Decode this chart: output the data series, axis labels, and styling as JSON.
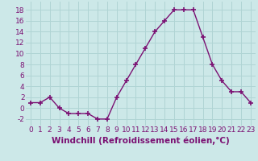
{
  "x": [
    0,
    1,
    2,
    3,
    4,
    5,
    6,
    7,
    8,
    9,
    10,
    11,
    12,
    13,
    14,
    15,
    16,
    17,
    18,
    19,
    20,
    21,
    22,
    23
  ],
  "y": [
    1,
    1,
    2,
    0,
    -1,
    -1,
    -1,
    -2,
    -2,
    2,
    5,
    8,
    11,
    14,
    16,
    18,
    18,
    18,
    13,
    8,
    5,
    3,
    3,
    1
  ],
  "line_color": "#7B1173",
  "marker": "+",
  "marker_size": 4,
  "marker_lw": 1.2,
  "bg_color": "#cce8e8",
  "grid_color": "#b0d4d4",
  "xlabel": "Windchill (Refroidissement éolien,°C)",
  "xlabel_fontsize": 7.5,
  "ylabel_ticks": [
    -2,
    0,
    2,
    4,
    6,
    8,
    10,
    12,
    14,
    16,
    18
  ],
  "xlim": [
    -0.5,
    23.5
  ],
  "ylim": [
    -3.2,
    19.5
  ],
  "tick_fontsize": 6.5,
  "label_color": "#7B1173",
  "line_width": 1.0
}
